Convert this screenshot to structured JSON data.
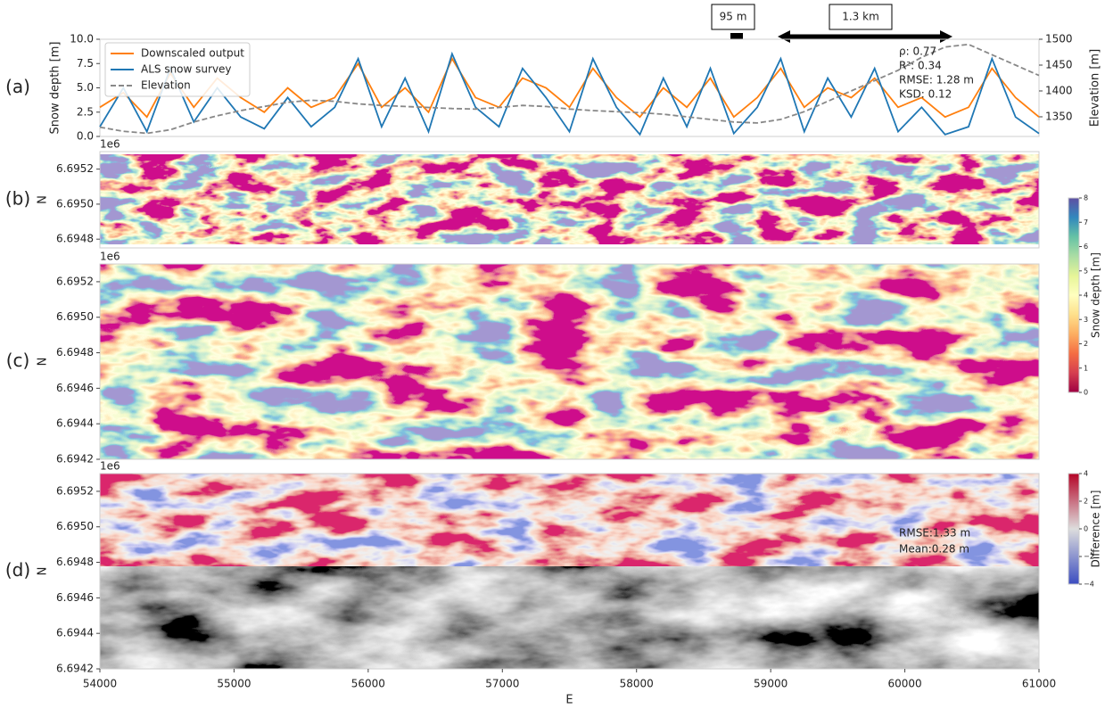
{
  "chart_data": [
    {
      "type": "line",
      "panel_label": "(a)",
      "ylabel": "Snow depth [m]",
      "y2label": "Elevation [m]",
      "xlim": [
        54000,
        61000
      ],
      "ylim": [
        0,
        10
      ],
      "yticks": [
        {
          "value": 0,
          "label": "0.0"
        },
        2.5,
        {
          "value": 5,
          "label": "5.0"
        },
        7.5,
        {
          "value": 10,
          "label": "10.0"
        }
      ],
      "y2lim": [
        1312,
        1500
      ],
      "y2ticks": [
        1350,
        1400,
        1450,
        1500
      ],
      "legend": "upper left",
      "x": [
        54000,
        54175,
        54350,
        54525,
        54700,
        54875,
        55050,
        55225,
        55400,
        55575,
        55750,
        55925,
        56100,
        56275,
        56450,
        56625,
        56800,
        56975,
        57150,
        57325,
        57500,
        57675,
        57850,
        58025,
        58200,
        58375,
        58550,
        58725,
        58900,
        59075,
        59250,
        59425,
        59600,
        59775,
        59950,
        60125,
        60300,
        60475,
        60650,
        60825,
        61000
      ],
      "series": [
        {
          "name": "Downscaled output",
          "color": "#ff7f0e",
          "values": [
            3,
            4.5,
            2,
            6.5,
            3,
            6,
            4,
            2.5,
            5,
            3,
            4,
            7.5,
            3,
            5,
            2.5,
            8,
            4,
            3,
            6,
            5,
            3,
            7,
            4,
            2,
            5,
            3,
            6,
            2,
            4,
            7,
            3,
            5,
            4,
            6,
            3,
            4,
            2,
            3,
            7,
            4,
            2
          ]
        },
        {
          "name": "ALS snow survey",
          "color": "#1f77b4",
          "values": [
            1,
            5,
            0.5,
            7,
            1.5,
            5,
            2,
            0.8,
            4,
            1,
            3,
            8,
            1,
            6,
            0.5,
            8.5,
            3,
            1,
            7,
            4,
            0.5,
            8,
            3,
            0.2,
            6,
            1,
            7,
            0.3,
            3,
            8,
            0.5,
            6,
            2,
            7,
            0.5,
            3,
            0.2,
            1,
            8,
            2,
            0.3
          ]
        },
        {
          "name": "Elevation",
          "color": "#888888",
          "dashed": true,
          "axis": "y2",
          "values": [
            1330,
            1322,
            1318,
            1325,
            1340,
            1352,
            1362,
            1370,
            1378,
            1382,
            1380,
            1375,
            1372,
            1370,
            1368,
            1366,
            1365,
            1368,
            1372,
            1370,
            1365,
            1362,
            1360,
            1358,
            1355,
            1350,
            1345,
            1340,
            1338,
            1345,
            1360,
            1380,
            1400,
            1420,
            1440,
            1465,
            1485,
            1490,
            1470,
            1450,
            1430
          ]
        }
      ],
      "annotations": [
        "ρ: 0.77",
        "R²: 0.34",
        "RMSE: 1.28 m",
        "KSD: 0.12"
      ],
      "scale_labels": [
        "95 m",
        "1.3 km"
      ]
    },
    {
      "type": "map",
      "panel_label": "(b)",
      "colormap": "spectral",
      "ylabel": "N",
      "offset_text": "1e6",
      "xlim": [
        54000,
        61000
      ],
      "ylim": [
        6.69475,
        6.6953
      ],
      "yticks": [
        6.6948,
        {
          "value": 6.695,
          "label": "6.6950"
        },
        6.6952
      ]
    },
    {
      "type": "map",
      "panel_label": "(c)",
      "colormap": "spectral",
      "ylabel": "N",
      "offset_text": "1e6",
      "xlim": [
        54000,
        61000
      ],
      "ylim": [
        6.6942,
        6.6953
      ],
      "yticks": [
        6.6942,
        6.6944,
        6.6946,
        6.6948,
        {
          "value": 6.695,
          "label": "6.6950"
        },
        6.6952
      ],
      "colorbar": {
        "label": "Snow depth [m]",
        "lim": [
          0,
          8
        ],
        "ticks": [
          0,
          1,
          2,
          3,
          4,
          5,
          6,
          7,
          8
        ]
      }
    },
    {
      "type": "map",
      "panel_label": "(d)",
      "colormap": "coolwarm",
      "ylabel": "N",
      "offset_text": "1e6",
      "xlabel": "E",
      "xlim": [
        54000,
        61000
      ],
      "ylim": [
        6.6942,
        6.6953
      ],
      "xticks": [
        54000,
        55000,
        56000,
        57000,
        58000,
        59000,
        60000,
        61000
      ],
      "yticks": [
        6.6942,
        6.6944,
        6.6946,
        6.6948,
        {
          "value": 6.695,
          "label": "6.6950"
        },
        6.6952
      ],
      "annotations": [
        "RMSE:1.33 m",
        "Mean:0.28 m"
      ],
      "colorbar": {
        "label": "Difference [m]",
        "lim": [
          -4,
          4
        ],
        "ticks": [
          {
            "value": -4,
            "label": "−4"
          },
          {
            "value": -2,
            "label": "−2"
          },
          0,
          2,
          4
        ]
      }
    }
  ]
}
